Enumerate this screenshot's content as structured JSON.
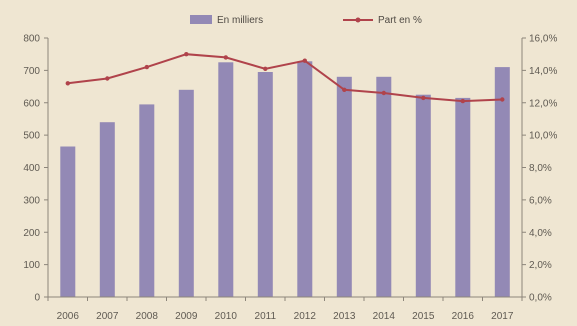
{
  "chart_data": {
    "type": "bar",
    "categories": [
      "2006",
      "2007",
      "2008",
      "2009",
      "2010",
      "2011",
      "2012",
      "2013",
      "2014",
      "2015",
      "2016",
      "2017"
    ],
    "series": [
      {
        "name": "En milliers",
        "type": "bar",
        "axis": "left",
        "values": [
          465,
          540,
          595,
          640,
          725,
          695,
          728,
          680,
          680,
          625,
          615,
          710
        ]
      },
      {
        "name": "Part en %",
        "type": "line",
        "axis": "right",
        "values": [
          13.2,
          13.5,
          14.2,
          15.0,
          14.8,
          14.1,
          14.6,
          12.8,
          12.6,
          12.3,
          12.1,
          12.2
        ]
      }
    ],
    "y_left": {
      "ylim": [
        0,
        800
      ],
      "ticks": [
        "0",
        "100",
        "200",
        "300",
        "400",
        "500",
        "600",
        "700",
        "800"
      ]
    },
    "y_right": {
      "ylim": [
        0,
        16
      ],
      "ticks": [
        "0,0%",
        "2,0%",
        "4,0%",
        "6,0%",
        "8,0%",
        "10,0%",
        "12,0%",
        "14,0%",
        "16,0%"
      ]
    },
    "grid": false,
    "legend": "top-center",
    "colors": {
      "bar": "#9389b5",
      "line": "#b0434b",
      "background": "#efe6d2",
      "axis": "#8c857a"
    }
  }
}
